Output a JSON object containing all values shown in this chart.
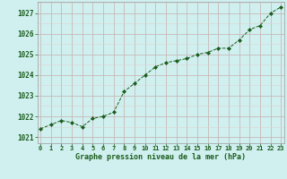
{
  "x": [
    0,
    1,
    2,
    3,
    4,
    5,
    6,
    7,
    8,
    9,
    10,
    11,
    12,
    13,
    14,
    15,
    16,
    17,
    18,
    19,
    20,
    21,
    22,
    23
  ],
  "y": [
    1021.4,
    1021.6,
    1021.8,
    1021.7,
    1021.5,
    1021.9,
    1022.0,
    1022.2,
    1023.2,
    1023.6,
    1024.0,
    1024.4,
    1024.6,
    1024.7,
    1024.8,
    1025.0,
    1025.1,
    1025.3,
    1025.3,
    1025.7,
    1026.2,
    1026.4,
    1027.0,
    1027.3
  ],
  "line_color": "#1a5c1a",
  "marker_color": "#1a5c1a",
  "bg_color": "#d0f0f0",
  "grid_major_color": "#c8b8b8",
  "grid_minor_color": "#ddd0d0",
  "xlabel": "Graphe pression niveau de la mer (hPa)",
  "xlabel_color": "#1a5c1a",
  "ytick_values": [
    1021,
    1022,
    1023,
    1024,
    1025,
    1026,
    1027
  ],
  "xtick_values": [
    0,
    1,
    2,
    3,
    4,
    5,
    6,
    7,
    8,
    9,
    10,
    11,
    12,
    13,
    14,
    15,
    16,
    17,
    18,
    19,
    20,
    21,
    22,
    23
  ],
  "ylim": [
    1020.7,
    1027.55
  ],
  "xlim": [
    -0.3,
    23.3
  ]
}
